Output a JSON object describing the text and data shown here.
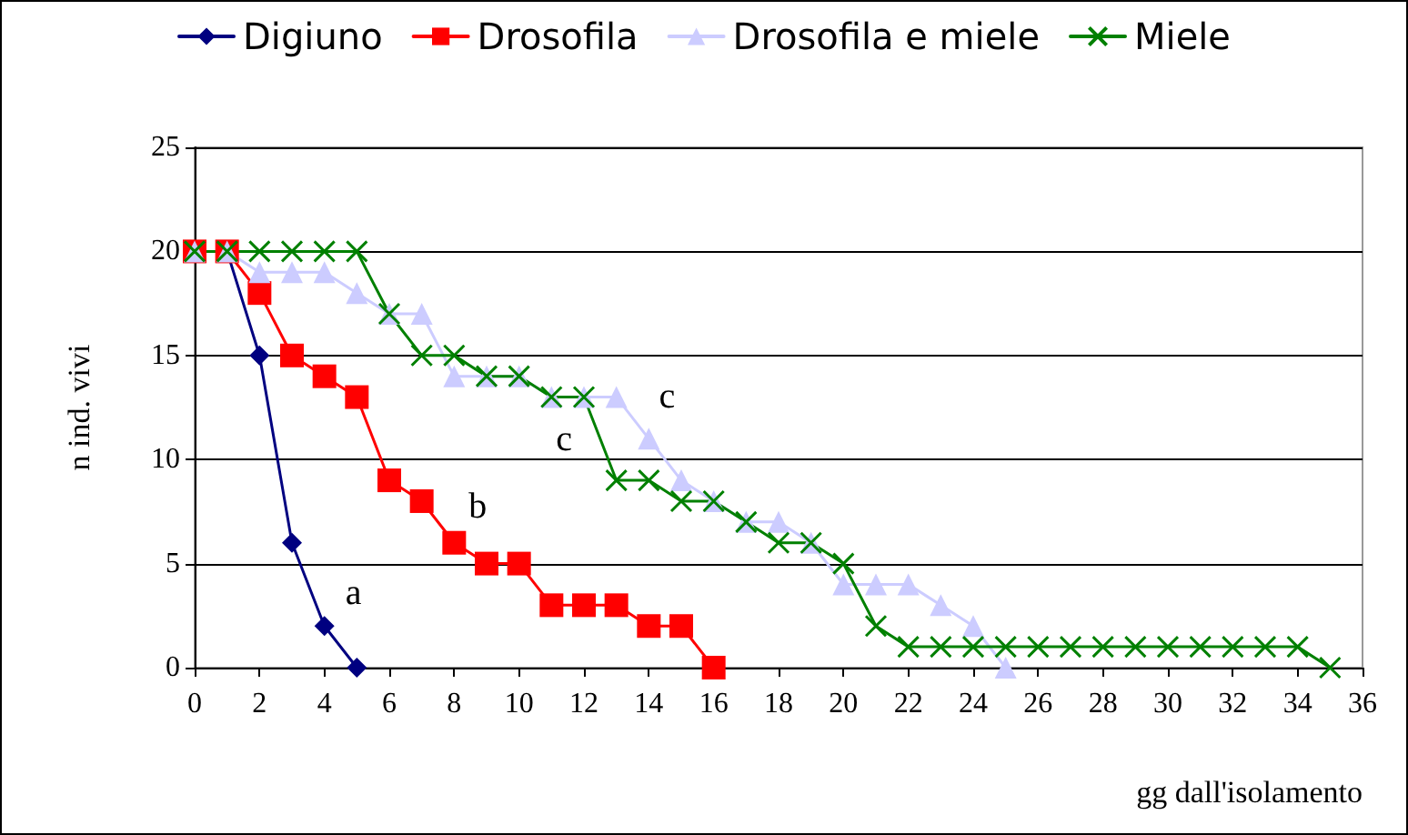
{
  "chart_data": {
    "type": "line",
    "xlabel": "gg dall'isolamento",
    "ylabel": "n ind. vivi",
    "xlim": [
      0,
      36
    ],
    "xticks": [
      0,
      2,
      4,
      6,
      8,
      10,
      12,
      14,
      16,
      18,
      20,
      22,
      24,
      26,
      28,
      30,
      32,
      34,
      36
    ],
    "ylim": [
      0,
      25
    ],
    "yticks": [
      0,
      5,
      10,
      15,
      20,
      25
    ],
    "grid": "y",
    "legend": "top",
    "series": [
      {
        "name": "Digiuno",
        "color": "#000080",
        "marker": "diamond",
        "x": [
          0,
          1,
          2,
          3,
          4,
          5
        ],
        "values": [
          20,
          20,
          15,
          6,
          2,
          0
        ]
      },
      {
        "name": "Drosofila",
        "color": "#ff0000",
        "marker": "square",
        "x": [
          0,
          1,
          2,
          3,
          4,
          5,
          6,
          7,
          8,
          9,
          10,
          11,
          12,
          13,
          14,
          15,
          16
        ],
        "values": [
          20,
          20,
          18,
          15,
          14,
          13,
          9,
          8,
          6,
          5,
          5,
          3,
          3,
          3,
          2,
          2,
          0
        ]
      },
      {
        "name": "Drosofila e miele",
        "color": "#ccccff",
        "marker": "triangle",
        "x": [
          0,
          1,
          2,
          3,
          4,
          5,
          6,
          7,
          8,
          9,
          10,
          11,
          12,
          13,
          14,
          15,
          16,
          17,
          18,
          19,
          20,
          21,
          22,
          23,
          24,
          25
        ],
        "values": [
          20,
          20,
          19,
          19,
          19,
          18,
          17,
          17,
          14,
          14,
          14,
          13,
          13,
          13,
          11,
          9,
          8,
          7,
          7,
          6,
          4,
          4,
          4,
          3,
          2,
          0
        ]
      },
      {
        "name": "Miele",
        "color": "#008000",
        "marker": "cross",
        "x": [
          0,
          1,
          2,
          3,
          4,
          5,
          6,
          7,
          8,
          9,
          10,
          11,
          12,
          13,
          14,
          15,
          16,
          17,
          18,
          19,
          20,
          21,
          22,
          23,
          24,
          25,
          26,
          27,
          28,
          29,
          30,
          31,
          32,
          33,
          34,
          35
        ],
        "values": [
          20,
          20,
          20,
          20,
          20,
          20,
          17,
          15,
          15,
          14,
          14,
          13,
          13,
          9,
          9,
          8,
          8,
          7,
          6,
          6,
          5,
          2,
          1,
          1,
          1,
          1,
          1,
          1,
          1,
          1,
          1,
          1,
          1,
          1,
          1,
          0
        ]
      }
    ],
    "annotations": [
      "a",
      "b",
      "c",
      "c"
    ]
  }
}
